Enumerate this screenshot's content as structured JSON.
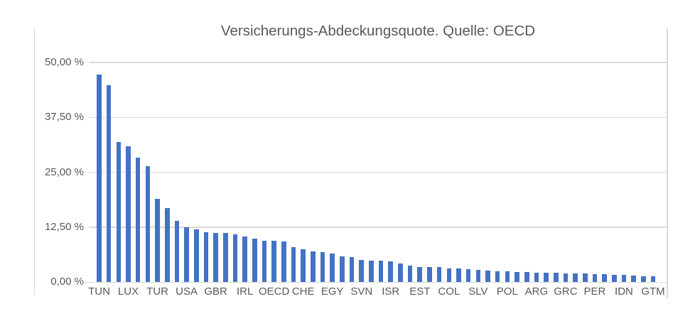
{
  "colors": {
    "background": "#ffffff",
    "bar": "#4472c4",
    "grid": "#d9d9d9",
    "text": "#595959"
  },
  "chart_data": {
    "type": "bar",
    "title": "Versicherungs-Abdeckungsquote. Quelle: OECD",
    "xlabel": "",
    "ylabel": "",
    "ylim": [
      0,
      50
    ],
    "grid": true,
    "legend": "none",
    "y_tick_labels": [
      "50,00 %",
      "37,50 %",
      "25,00 %",
      "12,50 %",
      "0,00 %"
    ],
    "y_tick_values": [
      50,
      37.5,
      25,
      12.5,
      0
    ],
    "x_tick_labels": [
      "TUN",
      "LUX",
      "TUR",
      "USA",
      "GBR",
      "IRL",
      "OECD",
      "CHE",
      "EGY",
      "SVN",
      "ISR",
      "EST",
      "COL",
      "SLV",
      "POL",
      "ARG",
      "GRC",
      "PER",
      "IDN",
      "GTM"
    ],
    "x_label_every_n_bars": 3,
    "bar_count": 58,
    "values": [
      47.2,
      44.8,
      31.9,
      30.9,
      28.3,
      26.4,
      19.0,
      16.9,
      13.9,
      12.5,
      12.0,
      11.4,
      11.2,
      11.2,
      10.9,
      10.4,
      9.9,
      9.5,
      9.4,
      9.2,
      8.0,
      7.5,
      7.0,
      6.9,
      6.5,
      5.9,
      5.7,
      5.0,
      4.9,
      4.9,
      4.8,
      4.3,
      3.8,
      3.5,
      3.45,
      3.4,
      3.2,
      3.1,
      2.9,
      2.8,
      2.7,
      2.5,
      2.4,
      2.3,
      2.25,
      2.2,
      2.15,
      2.1,
      2.05,
      2.0,
      1.95,
      1.9,
      1.8,
      1.7,
      1.6,
      1.5,
      1.4,
      1.3
    ],
    "labeled_values": {
      "TUN": 47.2,
      "LUX": 30.9,
      "TUR": 19.0,
      "USA": 12.5,
      "GBR": 11.2,
      "IRL": 10.4,
      "OECD": 9.4,
      "CHE": 7.5,
      "EGY": 6.5,
      "SVN": 5.0,
      "ISR": 4.8,
      "EST": 3.5,
      "COL": 3.2,
      "SLV": 2.8,
      "POL": 2.4,
      "ARG": 2.2,
      "GRC": 2.05,
      "PER": 1.9,
      "IDN": 1.6,
      "GTM": 1.3
    }
  }
}
